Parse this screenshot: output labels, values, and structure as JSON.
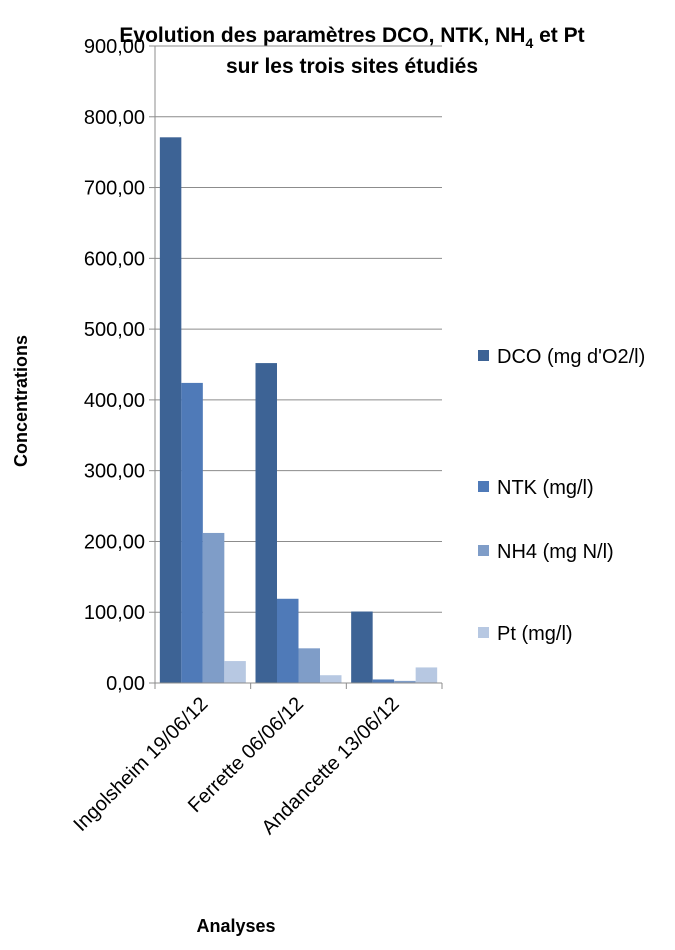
{
  "chart_data": {
    "type": "bar",
    "title": {
      "line1_prefix": "Evolution des paramètres DCO, NTK, NH",
      "line1_subscript": "4",
      "line1_suffix": " et Pt",
      "line2": "sur les trois sites étudiés"
    },
    "xlabel": "Analyses",
    "ylabel": "Concentrations",
    "categories": [
      "Ingolsheim 19/06/12",
      "Ferrette 06/06/12",
      "Andancette 13/06/12"
    ],
    "ylim": [
      0,
      900
    ],
    "yticks": [
      0,
      100,
      200,
      300,
      400,
      500,
      600,
      700,
      800,
      900
    ],
    "ytick_labels": [
      "0,00",
      "100,00",
      "200,00",
      "300,00",
      "400,00",
      "500,00",
      "600,00",
      "700,00",
      "800,00",
      "900,00"
    ],
    "grid": true,
    "legend_position": "right",
    "series": [
      {
        "name": "DCO (mg d'O2/l)",
        "color": "#3d6395",
        "values": [
          771,
          452,
          101
        ]
      },
      {
        "name": "NTK (mg/l)",
        "color": "#4f7ab8",
        "values": [
          424,
          119,
          5
        ]
      },
      {
        "name": "NH4 (mg N/l)",
        "color": "#7f9dc8",
        "values": [
          212,
          49,
          3
        ]
      },
      {
        "name": "Pt (mg/l)",
        "color": "#b7c8e2",
        "values": [
          31,
          11,
          22
        ]
      }
    ]
  }
}
